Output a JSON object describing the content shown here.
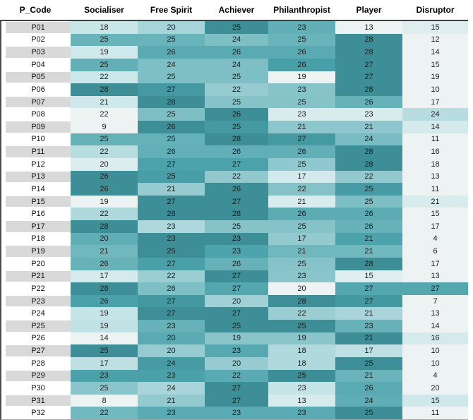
{
  "chart_data": {
    "type": "heatmap",
    "columns": [
      "P_Code",
      "Socialiser",
      "Free Spirit",
      "Achiever",
      "Philanthropist",
      "Player",
      "Disruptor"
    ],
    "row_codes": [
      "P01",
      "P02",
      "P03",
      "P04",
      "P05",
      "P06",
      "P07",
      "P08",
      "P09",
      "P10",
      "P11",
      "P12",
      "P13",
      "P14",
      "P15",
      "P16",
      "P17",
      "P18",
      "P19",
      "P20",
      "P21",
      "P22",
      "P23",
      "P24",
      "P25",
      "P26",
      "P27",
      "P28",
      "P29",
      "P30",
      "P31",
      "P32"
    ],
    "values": [
      [
        18,
        20,
        25,
        23,
        13,
        15
      ],
      [
        25,
        25,
        24,
        25,
        28,
        12
      ],
      [
        19,
        26,
        26,
        26,
        28,
        14
      ],
      [
        25,
        24,
        24,
        26,
        27,
        15
      ],
      [
        22,
        25,
        25,
        19,
        27,
        19
      ],
      [
        28,
        27,
        22,
        23,
        28,
        10
      ],
      [
        21,
        28,
        25,
        25,
        26,
        17
      ],
      [
        22,
        25,
        26,
        23,
        23,
        24
      ],
      [
        9,
        26,
        25,
        21,
        21,
        14
      ],
      [
        25,
        25,
        28,
        27,
        24,
        11
      ],
      [
        22,
        26,
        26,
        26,
        28,
        16
      ],
      [
        20,
        27,
        27,
        25,
        28,
        18
      ],
      [
        26,
        25,
        22,
        17,
        22,
        13
      ],
      [
        26,
        21,
        26,
        22,
        25,
        11
      ],
      [
        19,
        27,
        27,
        21,
        25,
        21
      ],
      [
        22,
        28,
        28,
        26,
        26,
        15
      ],
      [
        28,
        23,
        25,
        25,
        26,
        17
      ],
      [
        20,
        23,
        23,
        17,
        21,
        4
      ],
      [
        21,
        25,
        23,
        21,
        21,
        6
      ],
      [
        26,
        27,
        26,
        25,
        28,
        17
      ],
      [
        17,
        22,
        27,
        23,
        15,
        13
      ],
      [
        28,
        26,
        27,
        20,
        27,
        27
      ],
      [
        26,
        27,
        20,
        28,
        27,
        7
      ],
      [
        19,
        27,
        27,
        22,
        21,
        13
      ],
      [
        19,
        23,
        25,
        25,
        23,
        14
      ],
      [
        14,
        20,
        19,
        19,
        21,
        16
      ],
      [
        25,
        20,
        23,
        18,
        17,
        10
      ],
      [
        17,
        24,
        20,
        18,
        25,
        10
      ],
      [
        23,
        23,
        22,
        25,
        21,
        4
      ],
      [
        25,
        24,
        27,
        23,
        26,
        20
      ],
      [
        8,
        21,
        27,
        13,
        24,
        15
      ],
      [
        22,
        23,
        23,
        23,
        25,
        11
      ]
    ],
    "color_scale": {
      "mapping": "per-row min to max",
      "stops": [
        [
          0.0,
          "#EDF2F2"
        ],
        [
          0.4,
          "#CBE7EA"
        ],
        [
          0.7,
          "#8FC8CE"
        ],
        [
          0.9,
          "#4BA2AB"
        ],
        [
          1.0,
          "#3D8E96"
        ]
      ]
    },
    "styles": {
      "row_code_alt_bg": "#D9D9D9",
      "row_code_bg": "#FFFFFF",
      "header_rule_color": "#3F3F3F",
      "cell_text_color": "#1C1C1C"
    },
    "legend": "none",
    "grid": "off"
  }
}
